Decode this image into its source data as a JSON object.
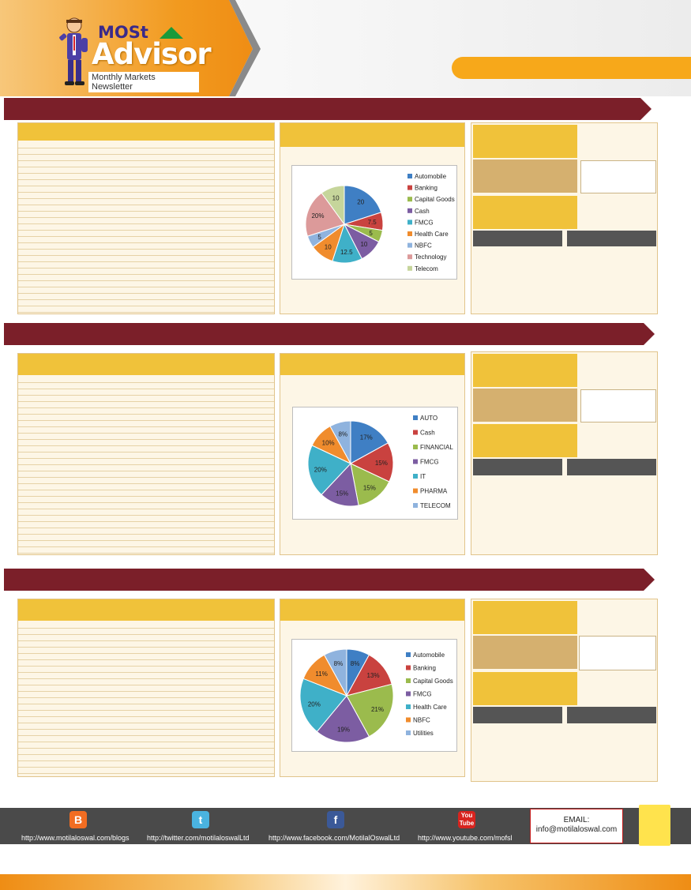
{
  "header": {
    "logo_most": "MOSt",
    "logo_advisor": "Advisor",
    "logo_subtitle": "Monthly Markets Newsletter"
  },
  "colors": {
    "maroon": "#7b1f29",
    "gold": "#f0c23a",
    "orange": "#f29a1f",
    "tan": "#d5b06f",
    "panel_bg": "#fdf6e6"
  },
  "sections": [
    {
      "chart_data": {
        "type": "pie",
        "labels": [
          "Automobile",
          "Banking",
          "Capital Goods",
          "Cash",
          "FMCG",
          "Health Care",
          "NBFC",
          "Technology",
          "Telecom"
        ],
        "values": [
          20,
          7.5,
          5,
          10,
          12.5,
          10,
          5,
          20,
          10
        ],
        "slice_labels": [
          "20",
          "7.5",
          "5",
          "10",
          "12.5",
          "10",
          "5",
          "20%",
          "10"
        ],
        "colors": [
          "#3f7fc4",
          "#c9423f",
          "#9bbb4d",
          "#7c5da2",
          "#3fb0c8",
          "#f08c2d",
          "#8fb3de",
          "#dc9a9a",
          "#c6d59b"
        ],
        "legend_position": "right"
      }
    },
    {
      "chart_data": {
        "type": "pie",
        "labels": [
          "AUTO",
          "Cash",
          "FINANCIAL",
          "FMCG",
          "IT",
          "PHARMA",
          "TELECOM"
        ],
        "values": [
          17,
          15,
          15,
          15,
          20,
          10,
          8
        ],
        "slice_labels": [
          "17%",
          "15%",
          "15%",
          "15%",
          "20%",
          "10%",
          "8%"
        ],
        "colors": [
          "#3f7fc4",
          "#c9423f",
          "#9bbb4d",
          "#7c5da2",
          "#3fb0c8",
          "#f08c2d",
          "#8fb3de"
        ],
        "legend_position": "right"
      }
    },
    {
      "chart_data": {
        "type": "pie",
        "labels": [
          "Automobile",
          "Banking",
          "Capital Goods",
          "FMCG",
          "Health Care",
          "NBFC",
          "Utilities"
        ],
        "values": [
          8,
          13,
          21,
          19,
          20,
          11,
          8
        ],
        "slice_labels": [
          "8%",
          "13%",
          "21%",
          "19%",
          "20%",
          "11%",
          "8%"
        ],
        "colors": [
          "#3f7fc4",
          "#c9423f",
          "#9bbb4d",
          "#7c5da2",
          "#3fb0c8",
          "#f08c2d",
          "#8fb3de"
        ],
        "legend_position": "right"
      }
    }
  ],
  "footer": {
    "links": [
      {
        "icon": "blogger-icon",
        "url": "http://www.motilaloswal.com/blogs"
      },
      {
        "icon": "twitter-icon",
        "url": "http://twitter.com/motilaloswalLtd"
      },
      {
        "icon": "facebook-icon",
        "url": "http://www.facebook.com/MotilalOswalLtd"
      },
      {
        "icon": "youtube-icon",
        "url": "http://www.youtube.com/mofsl"
      }
    ],
    "email_label": "EMAIL:",
    "email_address": "info@motilaloswal.com"
  }
}
